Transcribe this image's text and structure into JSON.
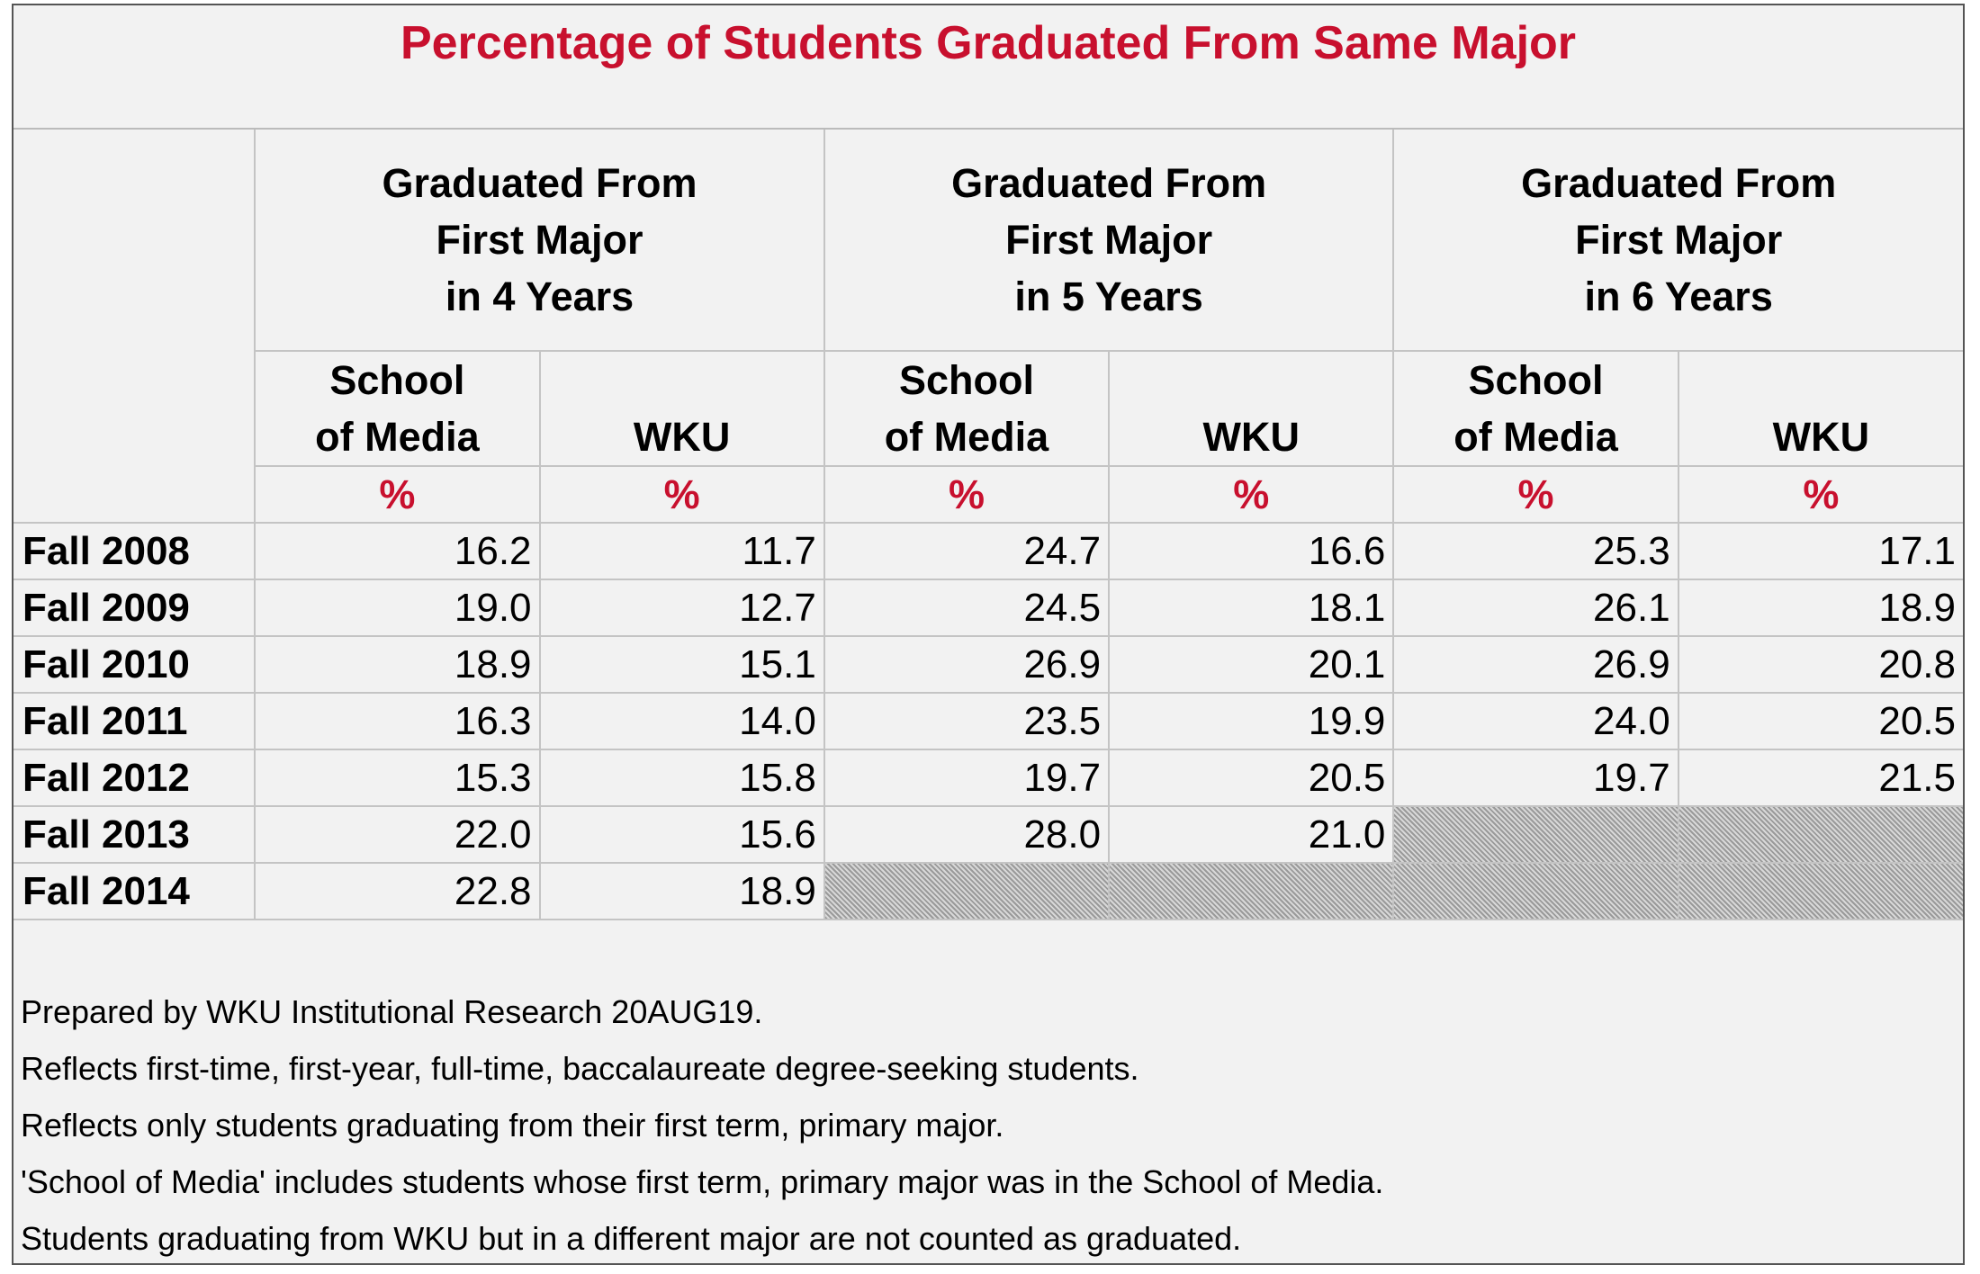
{
  "title": "Percentage of Students Graduated From Same Major",
  "column_groups": [
    {
      "lines": [
        "Graduated From",
        "First Major",
        "in 4 Years"
      ]
    },
    {
      "lines": [
        "Graduated From",
        "First Major",
        "in 5 Years"
      ]
    },
    {
      "lines": [
        "Graduated From",
        "First Major",
        "in 6 Years"
      ]
    }
  ],
  "columns": [
    {
      "lines": [
        "School",
        "of Media"
      ],
      "unit": "%"
    },
    {
      "lines": [
        "WKU"
      ],
      "unit": "%"
    },
    {
      "lines": [
        "School",
        "of Media"
      ],
      "unit": "%"
    },
    {
      "lines": [
        "WKU"
      ],
      "unit": "%"
    },
    {
      "lines": [
        "School",
        "of Media"
      ],
      "unit": "%"
    },
    {
      "lines": [
        "WKU"
      ],
      "unit": "%"
    }
  ],
  "rows": [
    {
      "label": "Fall 2008",
      "values": [
        "16.2",
        "11.7",
        "24.7",
        "16.6",
        "25.3",
        "17.1"
      ]
    },
    {
      "label": "Fall 2009",
      "values": [
        "19.0",
        "12.7",
        "24.5",
        "18.1",
        "26.1",
        "18.9"
      ]
    },
    {
      "label": "Fall 2010",
      "values": [
        "18.9",
        "15.1",
        "26.9",
        "20.1",
        "26.9",
        "20.8"
      ]
    },
    {
      "label": "Fall 2011",
      "values": [
        "16.3",
        "14.0",
        "23.5",
        "19.9",
        "24.0",
        "20.5"
      ]
    },
    {
      "label": "Fall 2012",
      "values": [
        "15.3",
        "15.8",
        "19.7",
        "20.5",
        "19.7",
        "21.5"
      ]
    },
    {
      "label": "Fall 2013",
      "values": [
        "22.0",
        "15.6",
        "28.0",
        "21.0",
        null,
        null
      ]
    },
    {
      "label": "Fall 2014",
      "values": [
        "22.8",
        "18.9",
        null,
        null,
        null,
        null
      ]
    }
  ],
  "notes": [
    "Prepared by WKU Institutional Research 20AUG19.",
    "Reflects first-time, first-year, full-time, baccalaureate degree-seeking students.",
    "Reflects only students graduating from their first term, primary major.",
    "'School of Media' includes students whose first term, primary major was in the School of Media.",
    "Students graduating from WKU but in a different major are not counted as graduated."
  ]
}
